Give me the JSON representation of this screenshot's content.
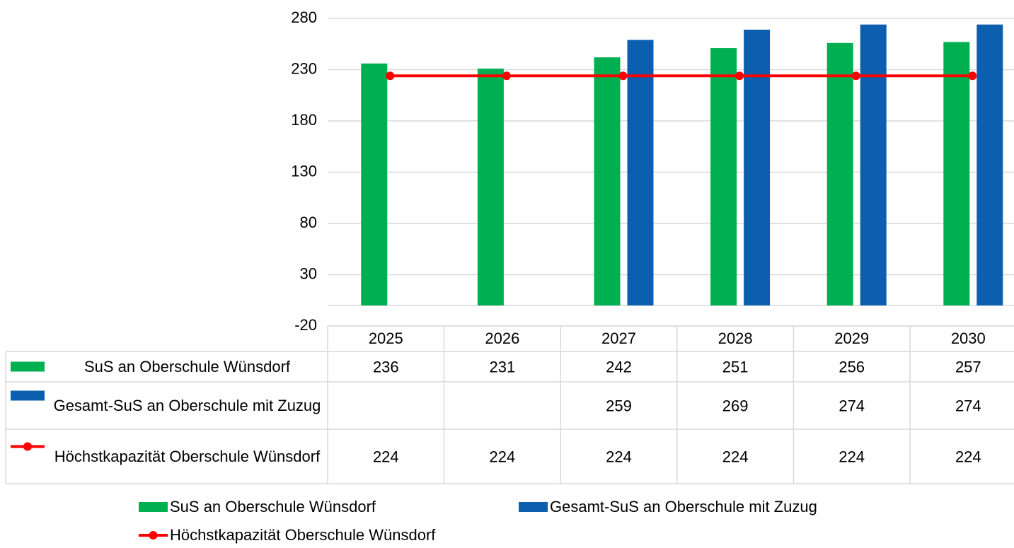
{
  "chart_data": {
    "type": "bar",
    "categories": [
      "2025",
      "2026",
      "2027",
      "2028",
      "2029",
      "2030"
    ],
    "series": [
      {
        "name": "SuS an Oberschule Wünsdorf",
        "color": "#00b050",
        "type": "bar",
        "values": [
          236,
          231,
          242,
          251,
          256,
          257
        ]
      },
      {
        "name": "Gesamt-SuS an Oberschule mit Zuzug",
        "color": "#0b5fae",
        "type": "bar",
        "values": [
          null,
          null,
          259,
          269,
          274,
          274
        ]
      },
      {
        "name": "Höchstkapazität Oberschule Wünsdorf",
        "color": "#ff0000",
        "type": "line",
        "values": [
          224,
          224,
          224,
          224,
          224,
          224
        ]
      }
    ],
    "ylim": [
      -20,
      280
    ],
    "yticks": [
      -20,
      30,
      80,
      130,
      180,
      230,
      280
    ],
    "grid": true,
    "data_table": true,
    "legend": "bottom"
  }
}
